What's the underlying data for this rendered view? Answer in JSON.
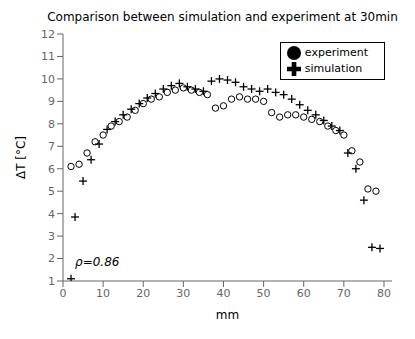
{
  "chart_data": {
    "type": "scatter",
    "title": "Comparison between simulation and experiment at 30min",
    "xlabel": "mm",
    "ylabel": "ΔT [°C]",
    "xlim": [
      0,
      82
    ],
    "ylim": [
      1,
      12
    ],
    "xticks": [
      0,
      10,
      20,
      30,
      40,
      50,
      60,
      70,
      80
    ],
    "yticks": [
      1,
      2,
      3,
      4,
      5,
      6,
      7,
      8,
      9,
      10,
      11,
      12
    ],
    "grid": false,
    "legend": "upper right",
    "series": [
      {
        "name": "simulation",
        "color": "#000000",
        "marker": "plus",
        "x": [
          2,
          3,
          5,
          7,
          9,
          11,
          13,
          15,
          17,
          19,
          21,
          23,
          25,
          27,
          29,
          31,
          33,
          35,
          37,
          39,
          41,
          43,
          45,
          47,
          49,
          51,
          53,
          55,
          57,
          59,
          61,
          63,
          65,
          67,
          69,
          71,
          73,
          75,
          77,
          79
        ],
        "values": [
          1.1,
          3.85,
          5.45,
          6.4,
          7.1,
          7.75,
          8.1,
          8.4,
          8.65,
          8.9,
          9.15,
          9.35,
          9.55,
          9.7,
          9.8,
          9.65,
          9.55,
          9.45,
          9.9,
          10.0,
          9.95,
          9.85,
          9.65,
          9.55,
          9.45,
          9.55,
          9.4,
          9.3,
          9.1,
          8.85,
          8.6,
          8.4,
          8.15,
          7.9,
          7.7,
          6.7,
          6.0,
          4.6,
          2.5,
          2.45
        ]
      },
      {
        "name": "experiment",
        "color": "#000000",
        "marker": "circle",
        "x": [
          2,
          4,
          6,
          8,
          10,
          12,
          14,
          16,
          18,
          20,
          22,
          24,
          26,
          28,
          30,
          32,
          34,
          36,
          38,
          40,
          42,
          44,
          46,
          48,
          50,
          52,
          54,
          56,
          58,
          60,
          62,
          64,
          66,
          68,
          70,
          72,
          74,
          76,
          78
        ],
        "values": [
          6.1,
          6.2,
          6.7,
          7.2,
          7.5,
          7.9,
          8.1,
          8.3,
          8.6,
          8.9,
          9.1,
          9.2,
          9.4,
          9.5,
          9.6,
          9.5,
          9.4,
          9.3,
          8.7,
          8.8,
          9.1,
          9.2,
          9.1,
          9.1,
          9.0,
          8.5,
          8.3,
          8.4,
          8.4,
          8.3,
          8.2,
          8.1,
          7.9,
          7.7,
          7.5,
          6.8,
          6.3,
          5.1,
          5.0
        ]
      }
    ],
    "annotations": [
      {
        "text": "ρ=0.86",
        "x": 3,
        "y": 1.85
      }
    ]
  }
}
